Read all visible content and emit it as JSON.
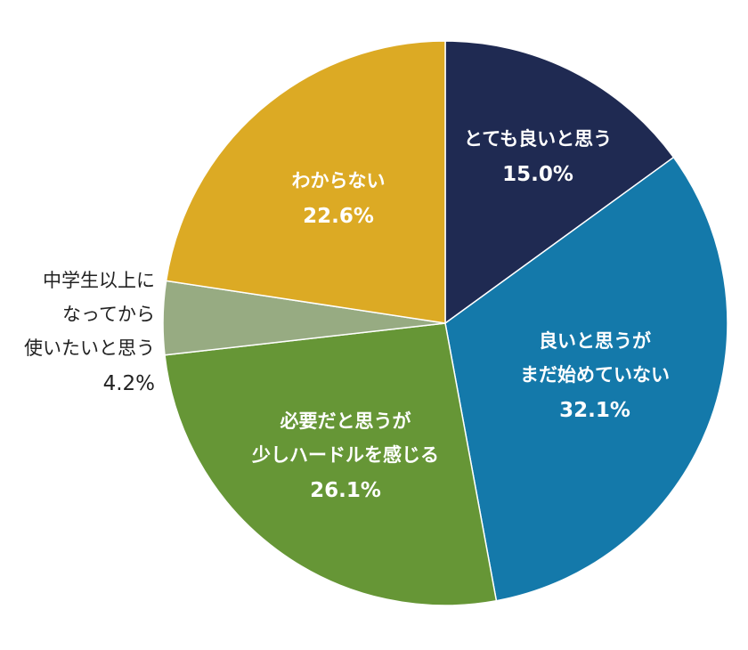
{
  "chart_data": {
    "type": "pie",
    "title": "",
    "start": "12 o'clock",
    "direction": "clockwise",
    "slices": [
      {
        "lines": [
          "とても良いと思う"
        ],
        "value_label": "15.0%",
        "value": 15.0,
        "color": "#1f2a52"
      },
      {
        "lines": [
          "良いと思うが",
          "まだ始めていない"
        ],
        "value_label": "32.1%",
        "value": 32.1,
        "color": "#1479aa"
      },
      {
        "lines": [
          "必要だと思うが",
          "少しハードルを感じる"
        ],
        "value_label": "26.1%",
        "value": 26.1,
        "color": "#669636"
      },
      {
        "lines": [
          "中学生以上に",
          "なってから",
          "使いたいと思う"
        ],
        "value_label": "4.2%",
        "value": 4.2,
        "color": "#97ab82"
      },
      {
        "lines": [
          "わからない"
        ],
        "value_label": "22.6%",
        "value": 22.6,
        "color": "#dcaa24"
      }
    ]
  }
}
